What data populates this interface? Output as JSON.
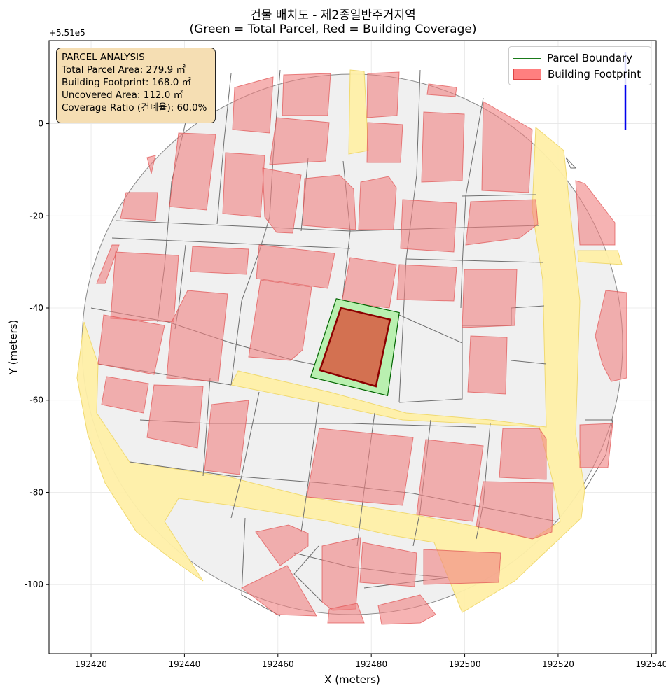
{
  "title_line1": "건물 배치도 - 제2종일반주거지역",
  "title_line2": "(Green = Total Parcel, Red = Building Coverage)",
  "offset_label": "+5.51e5",
  "colors": {
    "parcel_fill": "#b9f0b0",
    "parcel_edge": "#006400",
    "building_fill": "#d9543c",
    "building_edge": "#8b0000",
    "context_building": "#f4a4a4",
    "road": "#fff0a8",
    "lot": "#f0f0f0",
    "info_bg": "#f5deb3"
  },
  "info": {
    "heading": "PARCEL ANALYSIS",
    "total": "Total Parcel Area: 279.9 ㎡",
    "footprint": "Building Footprint: 168.0 ㎡",
    "uncovered": "Uncovered Area: 112.0 ㎡",
    "ratio": "Coverage Ratio (건폐율): 60.0%"
  },
  "legend": {
    "parcel": "Parcel Boundary",
    "building": "Building Footprint"
  },
  "chart_data": {
    "type": "map",
    "xlabel": "X (meters)",
    "ylabel": "Y (meters)",
    "xlim": [
      192411,
      192541
    ],
    "ylim": [
      -115,
      18
    ],
    "y_offset": 551000,
    "grid": true,
    "legend_position": "top-right",
    "x_ticks": [
      192420,
      192440,
      192460,
      192480,
      192500,
      192520,
      192540
    ],
    "y_ticks": [
      0,
      -20,
      -40,
      -60,
      -80,
      -100
    ],
    "x_tick_labels": [
      "192420",
      "192440",
      "192460",
      "192480",
      "192500",
      "192520",
      "192540"
    ],
    "y_tick_labels": [
      "0",
      "-20",
      "-40",
      "-60",
      "-80",
      "-100"
    ],
    "parcel": [
      [
        192467,
        -55
      ],
      [
        192472.5,
        -38
      ],
      [
        192486,
        -41
      ],
      [
        192483.5,
        -59
      ]
    ],
    "building": [
      [
        192469,
        -53.5
      ],
      [
        192473.5,
        -40
      ],
      [
        192484,
        -42.5
      ],
      [
        192481,
        -57
      ]
    ],
    "parcel_area_m2": 279.9,
    "footprint_area_m2": 168.0,
    "uncovered_area_m2": 112.0,
    "coverage_ratio_pct": 60.0
  }
}
